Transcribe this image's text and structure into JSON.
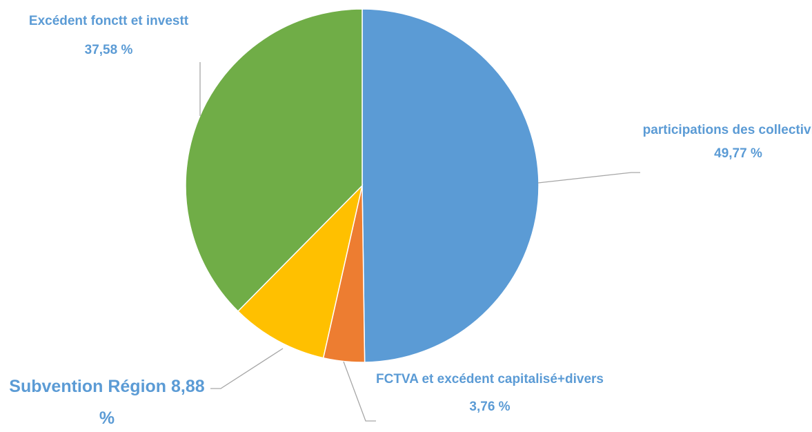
{
  "chart_data": {
    "type": "pie",
    "categories": [
      "participations des collectivités",
      "FCTVA et excédent capitalisé+divers",
      "Subvention Région",
      "Excédent fonctt et investt"
    ],
    "values": [
      49.77,
      3.76,
      8.88,
      37.58
    ],
    "value_labels": [
      "49,77 %",
      "3,76 %",
      "8,88 %",
      "37,58 %"
    ],
    "colors": [
      "#5b9bd5",
      "#ed7d31",
      "#ffc000",
      "#70ad47"
    ]
  }
}
